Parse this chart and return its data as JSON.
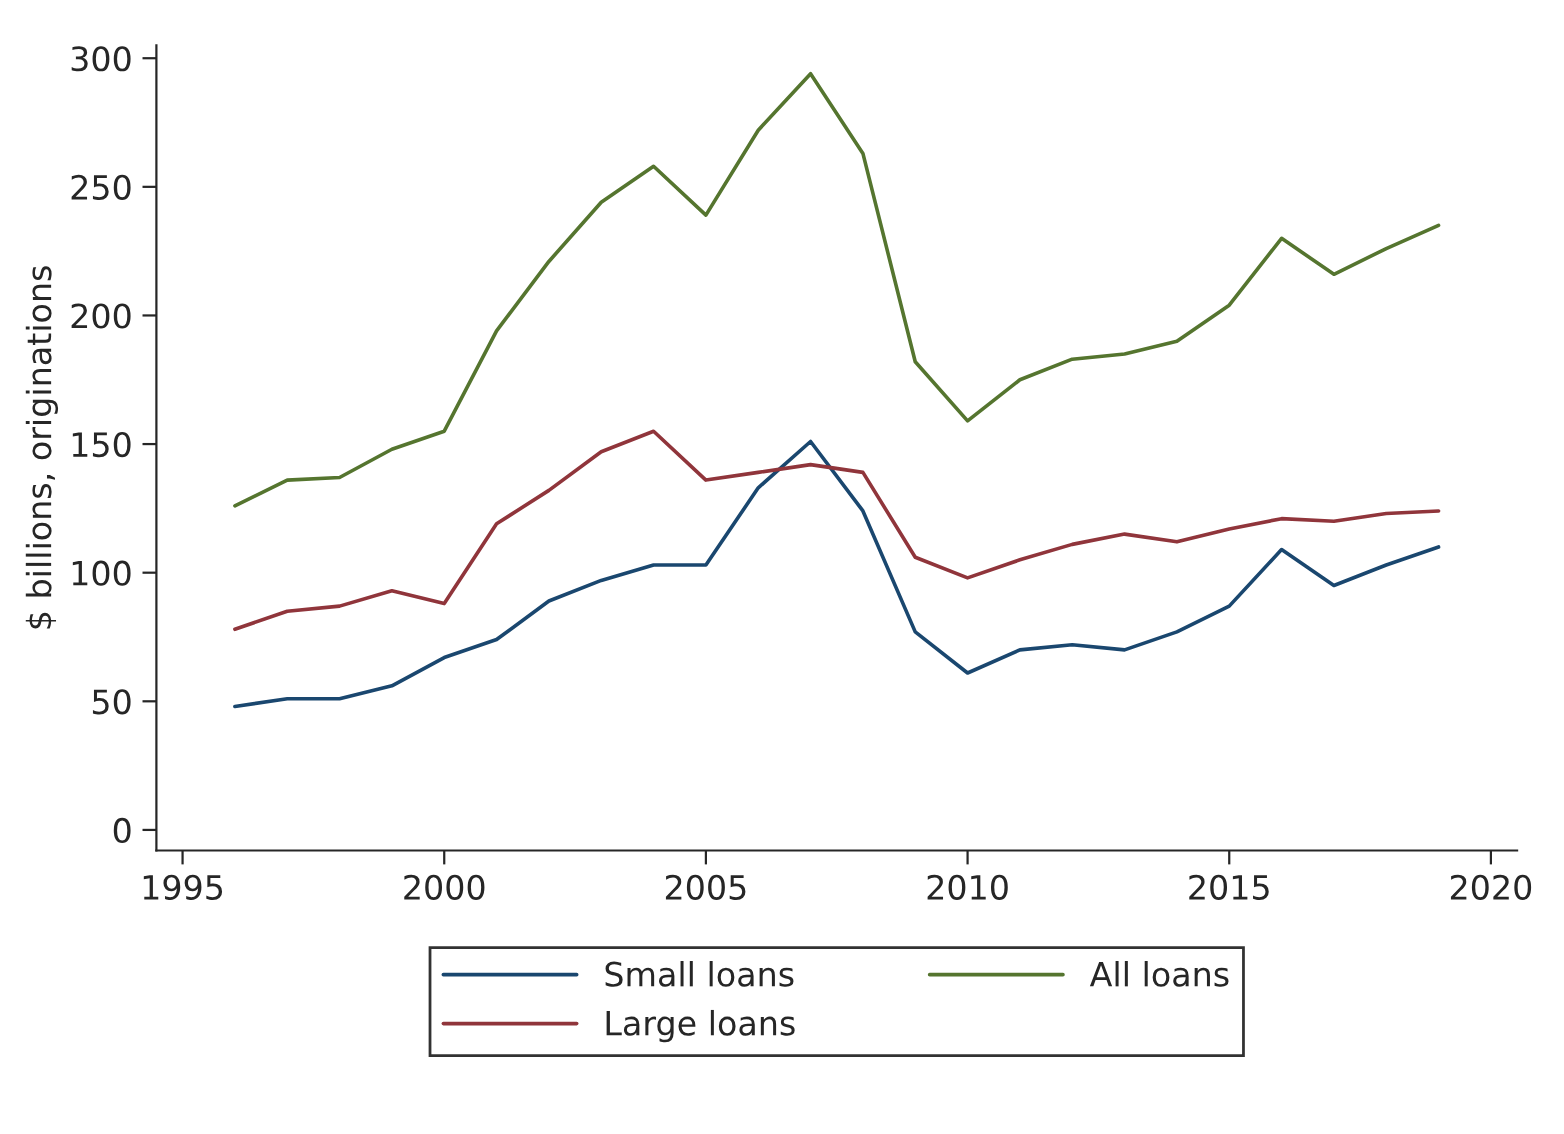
{
  "chart_data": {
    "type": "line",
    "ylabel": "$ billions, originations",
    "x": [
      1996,
      1997,
      1998,
      1999,
      2000,
      2001,
      2002,
      2003,
      2004,
      2005,
      2006,
      2007,
      2008,
      2009,
      2010,
      2011,
      2012,
      2013,
      2014,
      2015,
      2016,
      2017,
      2018,
      2019
    ],
    "series": [
      {
        "name": "Small loans",
        "color": "#1a476f",
        "values": [
          48,
          51,
          51,
          56,
          67,
          74,
          89,
          97,
          103,
          103,
          133,
          151,
          124,
          77,
          61,
          70,
          72,
          70,
          77,
          87,
          109,
          95,
          103,
          110
        ]
      },
      {
        "name": "Large loans",
        "color": "#90353b",
        "values": [
          78,
          85,
          87,
          93,
          88,
          119,
          132,
          147,
          155,
          136,
          139,
          142,
          139,
          106,
          98,
          105,
          111,
          115,
          112,
          117,
          121,
          120,
          123,
          124
        ]
      },
      {
        "name": "All loans",
        "color": "#55752f",
        "values": [
          126,
          136,
          137,
          148,
          155,
          194,
          221,
          244,
          258,
          239,
          272,
          294,
          263,
          182,
          159,
          175,
          183,
          185,
          190,
          204,
          230,
          216,
          226,
          235
        ]
      }
    ],
    "xlim": [
      1994.5,
      2020.5
    ],
    "xticks": [
      1995,
      2000,
      2005,
      2010,
      2015,
      2020
    ],
    "ylim": [
      -8,
      305
    ],
    "yticks": [
      0,
      50,
      100,
      150,
      200,
      250,
      300
    ],
    "grid": false,
    "legend": "bottom",
    "marker": "none",
    "line_style": "solid"
  }
}
